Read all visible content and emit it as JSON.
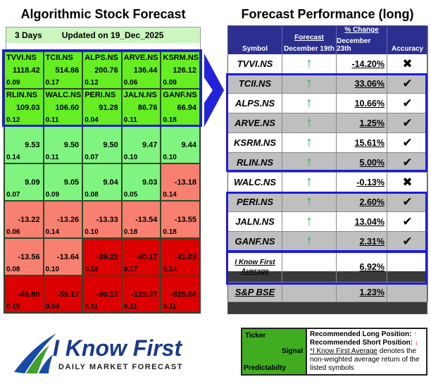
{
  "left": {
    "title": "Algorithmic Stock Forecast",
    "horizon": "3 Days",
    "updated": "Updated on 19_Dec_2025",
    "cells": [
      {
        "t": "TVVI.NS",
        "v": "1118.42",
        "p": "0.09",
        "c": "#66ee22"
      },
      {
        "t": "TCII.NS",
        "v": "514.86",
        "p": "0.17",
        "c": "#66ee22"
      },
      {
        "t": "ALPS.NS",
        "v": "200.76",
        "p": "0.12",
        "c": "#66ee22"
      },
      {
        "t": "ARVE.NS",
        "v": "136.44",
        "p": "0.06",
        "c": "#66ee22"
      },
      {
        "t": "KSRM.NS",
        "v": "126.12",
        "p": "0.09",
        "c": "#66ee22"
      },
      {
        "t": "RLIN.NS",
        "v": "109.03",
        "p": "0.12",
        "c": "#66ee22"
      },
      {
        "t": "WALC.NS",
        "v": "106.60",
        "p": "0.11",
        "c": "#66ee22"
      },
      {
        "t": "PERI.NS",
        "v": "91.28",
        "p": "0.04",
        "c": "#66ee22"
      },
      {
        "t": "JALN.NS",
        "v": "86.76",
        "p": "0.11",
        "c": "#66ee22"
      },
      {
        "t": "GANF.NS",
        "v": "66.94",
        "p": "0.18",
        "c": "#66ee22"
      },
      {
        "t": "",
        "v": "9.53",
        "p": "0.14",
        "c": "#7ff57f"
      },
      {
        "t": "",
        "v": "9.50",
        "p": "0.11",
        "c": "#7ff57f"
      },
      {
        "t": "",
        "v": "9.50",
        "p": "0.07",
        "c": "#7ff57f"
      },
      {
        "t": "",
        "v": "9.47",
        "p": "0.10",
        "c": "#7ff57f"
      },
      {
        "t": "",
        "v": "9.44",
        "p": "0.10",
        "c": "#7ff57f"
      },
      {
        "t": "",
        "v": "9.09",
        "p": "0.07",
        "c": "#7ff57f"
      },
      {
        "t": "",
        "v": "9.05",
        "p": "0.09",
        "c": "#7ff57f"
      },
      {
        "t": "",
        "v": "9.04",
        "p": "0.08",
        "c": "#7ff57f"
      },
      {
        "t": "",
        "v": "9.03",
        "p": "0.05",
        "c": "#7ff57f"
      },
      {
        "t": "",
        "v": "-13.18",
        "p": "0.14",
        "c": "#f88070"
      },
      {
        "t": "",
        "v": "-13.22",
        "p": "0.06",
        "c": "#f88070"
      },
      {
        "t": "",
        "v": "-13.26",
        "p": "0.14",
        "c": "#f88070"
      },
      {
        "t": "",
        "v": "-13.33",
        "p": "0.10",
        "c": "#f88070"
      },
      {
        "t": "",
        "v": "-13.54",
        "p": "0.18",
        "c": "#f88070"
      },
      {
        "t": "",
        "v": "-13.55",
        "p": "0.18",
        "c": "#f88070"
      },
      {
        "t": "",
        "v": "-13.56",
        "p": "0.08",
        "c": "#f88070"
      },
      {
        "t": "",
        "v": "-13.64",
        "p": "0.10",
        "c": "#f88070"
      },
      {
        "t": "",
        "v": "-35.22",
        "p": "0.16",
        "c": "#dd0000"
      },
      {
        "t": "",
        "v": "-40.17",
        "p": "0.17",
        "c": "#dd0000"
      },
      {
        "t": "",
        "v": "-41.03",
        "p": "0.14",
        "c": "#dd0000"
      },
      {
        "t": "",
        "v": "-46.85",
        "p": "0.15",
        "c": "#dd0000"
      },
      {
        "t": "",
        "v": "-59.17",
        "p": "0.04",
        "c": "#dd0000"
      },
      {
        "t": "",
        "v": "-60.13",
        "p": "0.11",
        "c": "#dd0000"
      },
      {
        "t": "",
        "v": "-129.37",
        "p": "0.11",
        "c": "#dd0000"
      },
      {
        "t": "",
        "v": "-925.04",
        "p": "0.11",
        "c": "#dd0000"
      }
    ]
  },
  "right": {
    "title": "Forecast Performance (long)",
    "headers": {
      "symbol": "Symbol",
      "forecast": "Forecast",
      "forecast_date": "December 19th",
      "change": "% Change",
      "change_date": "December 23th",
      "accuracy": "Accuracy"
    },
    "rows": [
      {
        "sym": "TVVI.NS",
        "chg": "-14.20%",
        "acc": "✖"
      },
      {
        "sym": "TCII.NS",
        "chg": "33.06%",
        "acc": "✔"
      },
      {
        "sym": "ALPS.NS",
        "chg": "10.66%",
        "acc": "✔"
      },
      {
        "sym": "ARVE.NS",
        "chg": "1.25%",
        "acc": "✔"
      },
      {
        "sym": "KSRM.NS",
        "chg": "15.61%",
        "acc": "✔"
      },
      {
        "sym": "RLIN.NS",
        "chg": "5.00%",
        "acc": "✔"
      },
      {
        "sym": "WALC.NS",
        "chg": "-0.13%",
        "acc": "✖"
      },
      {
        "sym": "PERI.NS",
        "chg": "2.60%",
        "acc": "✔"
      },
      {
        "sym": "JALN.NS",
        "chg": "13.04%",
        "acc": "✔"
      },
      {
        "sym": "GANF.NS",
        "chg": "2.31%",
        "acc": "✔"
      }
    ],
    "signal": "↑",
    "average": {
      "label1": "I Know First",
      "label2": "Average",
      "chg": "6.92%"
    },
    "benchmark": {
      "sym": "S&P BSE",
      "chg": "1.23%"
    }
  },
  "legend": {
    "ticker": "Ticker",
    "signal": "Signal",
    "predictability": "Predictabilty",
    "long": "Recommended Long Position:",
    "short": "Recommended Short Position:",
    "up": "↑",
    "down": "↓",
    "avg_link": "*I Know First Average",
    "note": " denotes the non-weighted average return of the listed symbols"
  },
  "logo": {
    "brand": "I Know First",
    "tagline": "Daily Market Forecast"
  },
  "colors": {
    "header_blue": "#2b2f8f",
    "highlight_box": "#1c1cd8",
    "up_arrow": "#22bb44",
    "down_arrow": "#dd2222"
  }
}
